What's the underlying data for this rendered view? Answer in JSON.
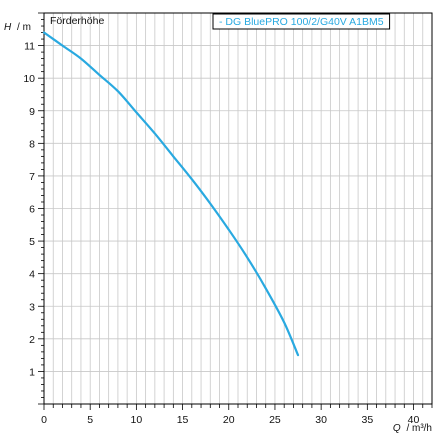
{
  "chart_data": {
    "type": "line",
    "title": "Förderhöhe",
    "ylabel_symbol": "H",
    "ylabel_unit": "/ m",
    "xlabel_symbol": "Q",
    "xlabel_unit": "/ m³/h",
    "xlim": [
      0,
      42
    ],
    "ylim": [
      0,
      12
    ],
    "x_ticks": [
      0,
      5,
      10,
      15,
      20,
      25,
      30,
      35,
      40
    ],
    "y_ticks": [
      1,
      2,
      3,
      4,
      5,
      6,
      7,
      8,
      9,
      10,
      11
    ],
    "grid": true,
    "legend_position": "top-right",
    "colors": {
      "series": "#29a9e0",
      "grid": "#c8c8c8",
      "axis": "#000000"
    },
    "series": [
      {
        "name": "- DG BluePRO 100/2/G40V A1BM5",
        "x": [
          0,
          2,
          4,
          6,
          8,
          10,
          12,
          14,
          16,
          18,
          20,
          22,
          24,
          26,
          27.5
        ],
        "y": [
          11.4,
          11.0,
          10.6,
          10.1,
          9.6,
          8.95,
          8.3,
          7.6,
          6.9,
          6.15,
          5.35,
          4.5,
          3.55,
          2.5,
          1.5
        ]
      }
    ]
  }
}
